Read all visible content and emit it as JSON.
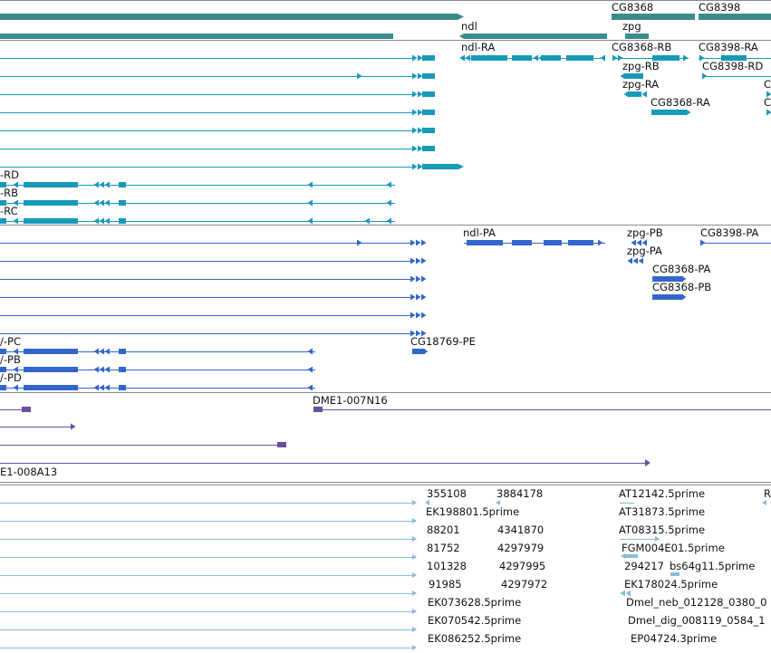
{
  "colors": {
    "gene": "#3a8c8c",
    "mrna": "#1799b8",
    "cds": "#3366cc",
    "clone": "#6a4fa0",
    "est": "#88bcd8",
    "divider": "#888888"
  },
  "tracks": {
    "gene": {
      "labels": [
        "ndl",
        "CG8368",
        "CG8398",
        "zpg"
      ]
    },
    "mrna": {
      "labels": [
        "ndl-RA",
        "CG8368-RB",
        "CG8398-RA",
        "zpg-RB",
        "CG8398-RD",
        "zpg-RA",
        "C",
        "CG8368-RA",
        "C",
        "-RD",
        "-RB",
        "-RC"
      ]
    },
    "cds": {
      "labels": [
        "ndl-PA",
        "zpg-PB",
        "CG8398-PA",
        "zpg-PA",
        "CG8368-PA",
        "CG8368-PB",
        "CG18769-PE",
        "/-PC",
        "/-PB",
        "/-PD"
      ]
    },
    "clone": {
      "labels": [
        "DME1-007N16",
        "E1-008A13"
      ]
    },
    "est": {
      "labels": [
        "355108",
        "3884178",
        "AT12142.5prime",
        "R",
        "EK198801.5prime",
        "AT31873.5prime",
        "88201",
        "4341870",
        "AT08315.5prime",
        "81752",
        "4297979",
        "FGM004E01.5prime",
        "101328",
        "4297995",
        "294217",
        "bs64g11.5prime",
        "91985",
        "4297972",
        "EK178024.5prime",
        "EK073628.5prime",
        "Dmel_neb_012128_0380_0",
        "EK070542.5prime",
        "Dmel_dig_008119_0584_1",
        "EK086252.5prime",
        "EP04724.3prime"
      ]
    }
  }
}
